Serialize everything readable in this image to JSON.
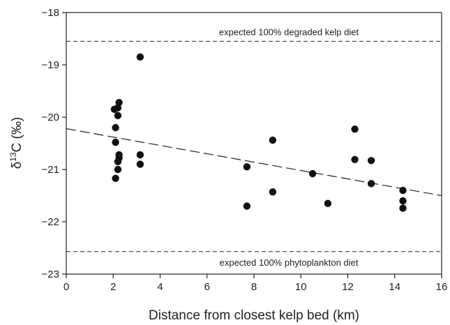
{
  "chart_data": {
    "type": "scatter",
    "xlabel": "Distance from closest kelp bed (km)",
    "ylabel": "δ13C (‰)",
    "xlim": [
      0,
      16
    ],
    "ylim": [
      -23,
      -18
    ],
    "x_ticks": [
      0,
      2,
      4,
      6,
      8,
      10,
      12,
      14,
      16
    ],
    "y_ticks": [
      -18,
      -19,
      -20,
      -21,
      -22,
      -23
    ],
    "x_tick_labels": [
      "0",
      "2",
      "4",
      "6",
      "8",
      "10",
      "12",
      "14",
      "16"
    ],
    "y_tick_labels": [
      "−18",
      "−19",
      "−20",
      "−21",
      "−22",
      "−23"
    ],
    "grid": false,
    "legend": "none",
    "points": [
      {
        "x": 2.05,
        "y": -19.85
      },
      {
        "x": 2.1,
        "y": -20.2
      },
      {
        "x": 2.1,
        "y": -20.48
      },
      {
        "x": 2.1,
        "y": -21.17
      },
      {
        "x": 2.2,
        "y": -19.82
      },
      {
        "x": 2.25,
        "y": -19.72
      },
      {
        "x": 2.2,
        "y": -19.97
      },
      {
        "x": 2.25,
        "y": -20.72
      },
      {
        "x": 2.25,
        "y": -20.78
      },
      {
        "x": 2.2,
        "y": -20.85
      },
      {
        "x": 2.2,
        "y": -21.0
      },
      {
        "x": 3.15,
        "y": -18.85
      },
      {
        "x": 3.15,
        "y": -20.72
      },
      {
        "x": 3.15,
        "y": -20.9
      },
      {
        "x": 7.7,
        "y": -20.95
      },
      {
        "x": 7.7,
        "y": -21.7
      },
      {
        "x": 8.8,
        "y": -20.44
      },
      {
        "x": 8.8,
        "y": -21.43
      },
      {
        "x": 10.5,
        "y": -21.08
      },
      {
        "x": 11.15,
        "y": -21.65
      },
      {
        "x": 12.3,
        "y": -20.23
      },
      {
        "x": 12.3,
        "y": -20.81
      },
      {
        "x": 13.0,
        "y": -20.83
      },
      {
        "x": 13.0,
        "y": -21.27
      },
      {
        "x": 14.35,
        "y": -21.4
      },
      {
        "x": 14.35,
        "y": -21.6
      },
      {
        "x": 14.35,
        "y": -21.74
      }
    ],
    "trend_line": {
      "x": [
        0,
        16
      ],
      "y": [
        -20.22,
        -21.5
      ],
      "style": "long-dashed"
    },
    "reference_lines": [
      {
        "y": -18.55,
        "label": "expected 100% degraded kelp diet",
        "style": "dashed"
      },
      {
        "y": -22.57,
        "label": "expected 100% phytoplankton diet",
        "style": "dashed"
      }
    ],
    "colors": {
      "points": "#111111",
      "axes": "#222222",
      "lines": "#222222"
    }
  }
}
